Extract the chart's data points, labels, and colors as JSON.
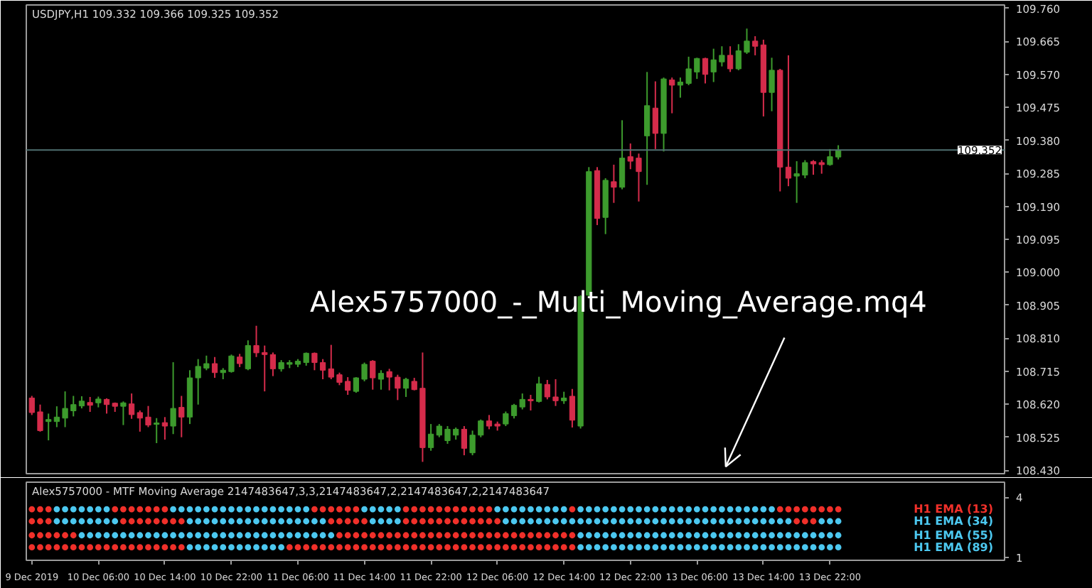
{
  "chart_data": [
    {
      "type": "candlestick",
      "title": "USDJPY,H1 109.332 109.366 109.325 109.352",
      "annotations": [
        "Alex5757000_-_Multi_Moving_Average.mq4"
      ],
      "x": [
        "2019-12-09T22:00",
        "2019-12-09T23:00",
        "2019-12-10T00:00",
        "2019-12-10T01:00",
        "2019-12-10T02:00",
        "2019-12-10T03:00",
        "2019-12-10T04:00",
        "2019-12-10T05:00",
        "2019-12-10T06:00",
        "2019-12-10T07:00",
        "2019-12-10T08:00",
        "2019-12-10T09:00",
        "2019-12-10T10:00",
        "2019-12-10T11:00",
        "2019-12-10T12:00",
        "2019-12-10T13:00",
        "2019-12-10T14:00",
        "2019-12-10T15:00",
        "2019-12-10T16:00",
        "2019-12-10T17:00",
        "2019-12-10T18:00",
        "2019-12-10T19:00",
        "2019-12-10T20:00",
        "2019-12-10T21:00",
        "2019-12-10T22:00",
        "2019-12-10T23:00",
        "2019-12-11T00:00",
        "2019-12-11T01:00",
        "2019-12-11T02:00",
        "2019-12-11T03:00",
        "2019-12-11T04:00",
        "2019-12-11T05:00",
        "2019-12-11T06:00",
        "2019-12-11T07:00",
        "2019-12-11T08:00",
        "2019-12-11T09:00",
        "2019-12-11T10:00",
        "2019-12-11T11:00",
        "2019-12-11T12:00",
        "2019-12-11T13:00",
        "2019-12-11T14:00",
        "2019-12-11T15:00",
        "2019-12-11T16:00",
        "2019-12-11T17:00",
        "2019-12-11T18:00",
        "2019-12-11T19:00",
        "2019-12-11T20:00",
        "2019-12-11T21:00",
        "2019-12-11T22:00",
        "2019-12-11T23:00",
        "2019-12-12T00:00",
        "2019-12-12T01:00",
        "2019-12-12T02:00",
        "2019-12-12T03:00",
        "2019-12-12T04:00",
        "2019-12-12T05:00",
        "2019-12-12T06:00",
        "2019-12-12T07:00",
        "2019-12-12T08:00",
        "2019-12-12T09:00",
        "2019-12-12T10:00",
        "2019-12-12T11:00",
        "2019-12-12T12:00",
        "2019-12-12T13:00",
        "2019-12-12T14:00",
        "2019-12-12T15:00",
        "2019-12-12T16:00",
        "2019-12-12T17:00",
        "2019-12-12T18:00",
        "2019-12-12T19:00",
        "2019-12-12T20:00",
        "2019-12-12T21:00",
        "2019-12-12T22:00",
        "2019-12-12T23:00",
        "2019-12-13T00:00",
        "2019-12-13T01:00",
        "2019-12-13T02:00",
        "2019-12-13T03:00",
        "2019-12-13T04:00",
        "2019-12-13T05:00",
        "2019-12-13T06:00",
        "2019-12-13T07:00",
        "2019-12-13T08:00",
        "2019-12-13T09:00",
        "2019-12-13T10:00",
        "2019-12-13T11:00",
        "2019-12-13T12:00",
        "2019-12-13T13:00",
        "2019-12-13T14:00",
        "2019-12-13T15:00",
        "2019-12-13T16:00",
        "2019-12-13T17:00",
        "2019-12-13T18:00",
        "2019-12-13T19:00",
        "2019-12-13T20:00",
        "2019-12-13T21:00",
        "2019-12-13T22:00",
        "2019-12-13T23:00"
      ],
      "ohlc": [
        [
          108.638,
          108.644,
          108.589,
          108.596
        ],
        [
          108.598,
          108.619,
          108.541,
          108.544
        ],
        [
          108.57,
          108.593,
          108.516,
          108.576
        ],
        [
          108.57,
          108.614,
          108.554,
          108.583
        ],
        [
          108.58,
          108.657,
          108.554,
          108.608
        ],
        [
          108.601,
          108.644,
          108.585,
          108.619
        ],
        [
          108.615,
          108.643,
          108.608,
          108.629
        ],
        [
          108.625,
          108.641,
          108.598,
          108.617
        ],
        [
          108.624,
          108.642,
          108.611,
          108.635
        ],
        [
          108.634,
          108.637,
          108.593,
          108.619
        ],
        [
          108.623,
          108.625,
          108.598,
          108.614
        ],
        [
          108.614,
          108.628,
          108.56,
          108.624
        ],
        [
          108.621,
          108.651,
          108.578,
          108.59
        ],
        [
          108.596,
          108.602,
          108.541,
          108.58
        ],
        [
          108.583,
          108.615,
          108.554,
          108.56
        ],
        [
          108.562,
          108.58,
          108.508,
          108.566
        ],
        [
          108.567,
          108.583,
          108.518,
          108.557
        ],
        [
          108.557,
          108.741,
          108.534,
          108.608
        ],
        [
          108.611,
          108.644,
          108.525,
          108.583
        ],
        [
          108.583,
          108.718,
          108.563,
          108.696
        ],
        [
          108.696,
          108.75,
          108.619,
          108.729
        ],
        [
          108.724,
          108.76,
          108.718,
          108.737
        ],
        [
          108.737,
          108.756,
          108.696,
          108.711
        ],
        [
          108.711,
          108.724,
          108.692,
          108.718
        ],
        [
          108.714,
          108.763,
          108.711,
          108.759
        ],
        [
          108.756,
          108.765,
          108.727,
          108.737
        ],
        [
          108.722,
          108.804,
          108.718,
          108.789
        ],
        [
          108.789,
          108.846,
          108.756,
          108.768
        ],
        [
          108.769,
          108.789,
          108.657,
          108.763
        ],
        [
          108.763,
          108.769,
          108.701,
          108.722
        ],
        [
          108.722,
          108.747,
          108.714,
          108.74
        ],
        [
          108.735,
          108.747,
          108.724,
          108.74
        ],
        [
          108.735,
          108.75,
          108.727,
          108.744
        ],
        [
          108.74,
          108.769,
          108.731,
          108.767
        ],
        [
          108.767,
          108.769,
          108.718,
          108.74
        ],
        [
          108.74,
          108.75,
          108.692,
          108.718
        ],
        [
          108.722,
          108.791,
          108.692,
          108.698
        ],
        [
          108.705,
          108.711,
          108.675,
          108.683
        ],
        [
          108.686,
          108.698,
          108.647,
          108.66
        ],
        [
          108.657,
          108.698,
          108.653,
          108.696
        ],
        [
          108.692,
          108.74,
          108.686,
          108.735
        ],
        [
          108.744,
          108.747,
          108.662,
          108.696
        ],
        [
          108.692,
          108.718,
          108.662,
          108.709
        ],
        [
          108.714,
          108.722,
          108.66,
          108.698
        ],
        [
          108.698,
          108.705,
          108.632,
          108.666
        ],
        [
          108.666,
          108.696,
          108.641,
          108.692
        ],
        [
          108.686,
          108.696,
          108.66,
          108.662
        ],
        [
          108.666,
          108.769,
          108.454,
          108.495
        ],
        [
          108.495,
          108.563,
          108.486,
          108.534
        ],
        [
          108.531,
          108.563,
          108.525,
          108.557
        ],
        [
          108.515,
          108.557,
          108.506,
          108.548
        ],
        [
          108.531,
          108.553,
          108.518,
          108.548
        ],
        [
          108.548,
          108.557,
          108.473,
          108.493
        ],
        [
          108.48,
          108.544,
          108.473,
          108.531
        ],
        [
          108.531,
          108.576,
          108.525,
          108.572
        ],
        [
          108.572,
          108.589,
          108.548,
          108.557
        ],
        [
          108.563,
          108.57,
          108.544,
          108.557
        ],
        [
          108.563,
          108.599,
          108.557,
          108.593
        ],
        [
          108.587,
          108.621,
          108.579,
          108.617
        ],
        [
          108.612,
          108.651,
          108.605,
          108.634
        ],
        [
          108.634,
          108.647,
          108.602,
          108.63
        ],
        [
          108.628,
          108.699,
          108.625,
          108.679
        ],
        [
          108.677,
          108.69,
          108.634,
          108.641
        ],
        [
          108.641,
          108.692,
          108.615,
          108.63
        ],
        [
          108.63,
          108.656,
          108.621,
          108.638
        ],
        [
          108.643,
          108.664,
          108.553,
          108.574
        ],
        [
          108.557,
          108.934,
          108.55,
          108.93
        ],
        [
          108.934,
          109.303,
          108.93,
          109.29
        ],
        [
          109.293,
          109.303,
          109.136,
          109.155
        ],
        [
          109.158,
          109.271,
          109.11,
          109.265
        ],
        [
          109.261,
          109.31,
          109.2,
          109.245
        ],
        [
          109.245,
          109.438,
          109.239,
          109.329
        ],
        [
          109.333,
          109.371,
          109.297,
          109.32
        ],
        [
          109.329,
          109.342,
          109.204,
          109.29
        ],
        [
          109.393,
          109.577,
          109.252,
          109.48
        ],
        [
          109.473,
          109.55,
          109.355,
          109.4
        ],
        [
          109.4,
          109.561,
          109.348,
          109.557
        ],
        [
          109.554,
          109.561,
          109.458,
          109.539
        ],
        [
          109.539,
          109.561,
          109.503,
          109.548
        ],
        [
          109.544,
          109.621,
          109.539,
          109.586
        ],
        [
          109.577,
          109.618,
          109.557,
          109.616
        ],
        [
          109.616,
          109.618,
          109.544,
          109.57
        ],
        [
          109.577,
          109.644,
          109.548,
          109.612
        ],
        [
          109.606,
          109.651,
          109.593,
          109.625
        ],
        [
          109.625,
          109.651,
          109.577,
          109.586
        ],
        [
          109.586,
          109.657,
          109.582,
          109.638
        ],
        [
          109.634,
          109.702,
          109.629,
          109.666
        ],
        [
          109.666,
          109.68,
          109.625,
          109.651
        ],
        [
          109.655,
          109.67,
          109.449,
          109.518
        ],
        [
          109.518,
          109.618,
          109.464,
          109.582
        ],
        [
          109.582,
          109.586,
          109.233,
          109.303
        ],
        [
          109.303,
          109.625,
          109.248,
          109.271
        ],
        [
          109.277,
          109.32,
          109.2,
          109.284
        ],
        [
          109.28,
          109.323,
          109.271,
          109.316
        ],
        [
          109.319,
          109.323,
          109.281,
          109.312
        ],
        [
          109.316,
          109.323,
          109.284,
          109.31
        ],
        [
          109.31,
          109.355,
          109.307,
          109.333
        ],
        [
          109.332,
          109.366,
          109.325,
          109.352
        ]
      ],
      "colors": [
        "#d52c4b",
        "#d52c4b",
        "#3d9b2d",
        "#3d9b2d",
        "#3d9b2d",
        "#3d9b2d",
        "#3d9b2d",
        "#d52c4b",
        "#3d9b2d",
        "#d52c4b",
        "#d52c4b",
        "#3d9b2d",
        "#d52c4b",
        "#d52c4b",
        "#d52c4b",
        "#3d9b2d",
        "#d52c4b",
        "#3d9b2d",
        "#d52c4b",
        "#3d9b2d",
        "#3d9b2d",
        "#3d9b2d",
        "#d52c4b",
        "#3d9b2d",
        "#3d9b2d",
        "#d52c4b",
        "#3d9b2d",
        "#d52c4b",
        "#d52c4b",
        "#d52c4b",
        "#3d9b2d",
        "#3d9b2d",
        "#3d9b2d",
        "#3d9b2d",
        "#d52c4b",
        "#d52c4b",
        "#d52c4b",
        "#d52c4b",
        "#d52c4b",
        "#3d9b2d",
        "#3d9b2d",
        "#d52c4b",
        "#3d9b2d",
        "#d52c4b",
        "#d52c4b",
        "#3d9b2d",
        "#d52c4b",
        "#d52c4b",
        "#3d9b2d",
        "#3d9b2d",
        "#3d9b2d",
        "#3d9b2d",
        "#d52c4b",
        "#3d9b2d",
        "#3d9b2d",
        "#d52c4b",
        "#d52c4b",
        "#3d9b2d",
        "#3d9b2d",
        "#3d9b2d",
        "#d52c4b",
        "#3d9b2d",
        "#d52c4b",
        "#d52c4b",
        "#3d9b2d",
        "#d52c4b",
        "#3d9b2d",
        "#3d9b2d",
        "#d52c4b",
        "#3d9b2d",
        "#d52c4b",
        "#3d9b2d",
        "#d52c4b",
        "#d52c4b",
        "#3d9b2d",
        "#d52c4b",
        "#3d9b2d",
        "#d52c4b",
        "#3d9b2d",
        "#3d9b2d",
        "#3d9b2d",
        "#d52c4b",
        "#3d9b2d",
        "#3d9b2d",
        "#d52c4b",
        "#3d9b2d",
        "#3d9b2d",
        "#d52c4b",
        "#d52c4b",
        "#3d9b2d",
        "#d52c4b",
        "#d52c4b",
        "#3d9b2d",
        "#3d9b2d",
        "#d52c4b",
        "#d52c4b",
        "#3d9b2d",
        "#3d9b2d"
      ],
      "xlim": [
        "2019-12-09T21:20",
        "2019-12-14T19:00"
      ],
      "ylim": [
        108.42,
        109.77
      ],
      "yticks": [
        {
          "value": 109.76,
          "label": "109.760"
        },
        109.665,
        {
          "value": 109.57,
          "label": "109.570"
        },
        109.475,
        {
          "value": 109.38,
          "label": "109.380"
        },
        109.285,
        {
          "value": 109.19,
          "label": "109.190"
        },
        109.095,
        {
          "value": 109.0,
          "label": "109.000"
        },
        108.905,
        {
          "value": 108.81,
          "label": "108.810"
        },
        108.715,
        {
          "value": 108.62,
          "label": "108.620"
        },
        108.525,
        {
          "value": 108.43,
          "label": "108.430"
        }
      ],
      "tick_labels": "y",
      "ref_lines": [
        {
          "axis": "y",
          "value": 109.352,
          "label": "109.352",
          "color": "#4f6f70"
        }
      ]
    },
    {
      "type": "scatter",
      "title": "Alex5757000 - MTF Moving Average 2147483647,3,3,2147483647,2,2147483647,2,2147483647",
      "x": [
        "2019-12-09T22:00",
        "2019-12-09T23:00",
        "2019-12-10T00:00",
        "2019-12-10T01:00",
        "2019-12-10T02:00",
        "2019-12-10T03:00",
        "2019-12-10T04:00",
        "2019-12-10T05:00",
        "2019-12-10T06:00",
        "2019-12-10T07:00",
        "2019-12-10T08:00",
        "2019-12-10T09:00",
        "2019-12-10T10:00",
        "2019-12-10T11:00",
        "2019-12-10T12:00",
        "2019-12-10T13:00",
        "2019-12-10T14:00",
        "2019-12-10T15:00",
        "2019-12-10T16:00",
        "2019-12-10T17:00",
        "2019-12-10T18:00",
        "2019-12-10T19:00",
        "2019-12-10T20:00",
        "2019-12-10T21:00",
        "2019-12-10T22:00",
        "2019-12-10T23:00",
        "2019-12-11T00:00",
        "2019-12-11T01:00",
        "2019-12-11T02:00",
        "2019-12-11T03:00",
        "2019-12-11T04:00",
        "2019-12-11T05:00",
        "2019-12-11T06:00",
        "2019-12-11T07:00",
        "2019-12-11T08:00",
        "2019-12-11T09:00",
        "2019-12-11T10:00",
        "2019-12-11T11:00",
        "2019-12-11T12:00",
        "2019-12-11T13:00",
        "2019-12-11T14:00",
        "2019-12-11T15:00",
        "2019-12-11T16:00",
        "2019-12-11T17:00",
        "2019-12-11T18:00",
        "2019-12-11T19:00",
        "2019-12-11T20:00",
        "2019-12-11T21:00",
        "2019-12-11T22:00",
        "2019-12-11T23:00",
        "2019-12-12T00:00",
        "2019-12-12T01:00",
        "2019-12-12T02:00",
        "2019-12-12T03:00",
        "2019-12-12T04:00",
        "2019-12-12T05:00",
        "2019-12-12T06:00",
        "2019-12-12T07:00",
        "2019-12-12T08:00",
        "2019-12-12T09:00",
        "2019-12-12T10:00",
        "2019-12-12T11:00",
        "2019-12-12T12:00",
        "2019-12-12T13:00",
        "2019-12-12T14:00",
        "2019-12-12T15:00",
        "2019-12-12T16:00",
        "2019-12-12T17:00",
        "2019-12-12T18:00",
        "2019-12-12T19:00",
        "2019-12-12T20:00",
        "2019-12-12T21:00",
        "2019-12-12T22:00",
        "2019-12-12T23:00",
        "2019-12-13T00:00",
        "2019-12-13T01:00",
        "2019-12-13T02:00",
        "2019-12-13T03:00",
        "2019-12-13T04:00",
        "2019-12-13T05:00",
        "2019-12-13T06:00",
        "2019-12-13T07:00",
        "2019-12-13T08:00",
        "2019-12-13T09:00",
        "2019-12-13T10:00",
        "2019-12-13T11:00",
        "2019-12-13T12:00",
        "2019-12-13T13:00",
        "2019-12-13T14:00",
        "2019-12-13T15:00",
        "2019-12-13T16:00",
        "2019-12-13T17:00",
        "2019-12-13T18:00",
        "2019-12-13T19:00",
        "2019-12-13T20:00",
        "2019-12-13T21:00",
        "2019-12-13T22:00",
        "2019-12-13T23:00"
      ],
      "series": [
        {
          "name": "H1 EMA (13)",
          "values": [
            3.4,
            3.4,
            3.4,
            3.4,
            3.4,
            3.4,
            3.4,
            3.4,
            3.4,
            3.4,
            3.4,
            3.4,
            3.4,
            3.4,
            3.4,
            3.4,
            3.4,
            3.4,
            3.4,
            3.4,
            3.4,
            3.4,
            3.4,
            3.4,
            3.4,
            3.4,
            3.4,
            3.4,
            3.4,
            3.4,
            3.4,
            3.4,
            3.4,
            3.4,
            3.4,
            3.4,
            3.4,
            3.4,
            3.4,
            3.4,
            3.4,
            3.4,
            3.4,
            3.4,
            3.4,
            3.4,
            3.4,
            3.4,
            3.4,
            3.4,
            3.4,
            3.4,
            3.4,
            3.4,
            3.4,
            3.4,
            3.4,
            3.4,
            3.4,
            3.4,
            3.4,
            3.4,
            3.4,
            3.4,
            3.4,
            3.4,
            3.4,
            3.4,
            3.4,
            3.4,
            3.4,
            3.4,
            3.4,
            3.4,
            3.4,
            3.4,
            3.4,
            3.4,
            3.4,
            3.4,
            3.4,
            3.4,
            3.4,
            3.4,
            3.4,
            3.4,
            3.4,
            3.4,
            3.4,
            3.4,
            3.4,
            3.4,
            3.4,
            3.4,
            3.4,
            3.4,
            3.4,
            3.4
          ],
          "colors": [
            "#f0302a",
            "#f0302a",
            "#f0302a",
            "#4cc8f0",
            "#4cc8f0",
            "#4cc8f0",
            "#4cc8f0",
            "#4cc8f0",
            "#4cc8f0",
            "#4cc8f0",
            "#f0302a",
            "#f0302a",
            "#f0302a",
            "#f0302a",
            "#f0302a",
            "#f0302a",
            "#f0302a",
            "#4cc8f0",
            "#4cc8f0",
            "#4cc8f0",
            "#4cc8f0",
            "#4cc8f0",
            "#4cc8f0",
            "#4cc8f0",
            "#4cc8f0",
            "#4cc8f0",
            "#4cc8f0",
            "#4cc8f0",
            "#4cc8f0",
            "#4cc8f0",
            "#4cc8f0",
            "#4cc8f0",
            "#4cc8f0",
            "#4cc8f0",
            "#f0302a",
            "#f0302a",
            "#f0302a",
            "#f0302a",
            "#f0302a",
            "#f0302a",
            "#4cc8f0",
            "#4cc8f0",
            "#4cc8f0",
            "#4cc8f0",
            "#4cc8f0",
            "#f0302a",
            "#f0302a",
            "#f0302a",
            "#f0302a",
            "#f0302a",
            "#f0302a",
            "#f0302a",
            "#f0302a",
            "#f0302a",
            "#f0302a",
            "#f0302a",
            "#4cc8f0",
            "#4cc8f0",
            "#4cc8f0",
            "#4cc8f0",
            "#4cc8f0",
            "#4cc8f0",
            "#4cc8f0",
            "#4cc8f0",
            "#4cc8f0",
            "#f0302a",
            "#4cc8f0",
            "#4cc8f0",
            "#4cc8f0",
            "#4cc8f0",
            "#4cc8f0",
            "#4cc8f0",
            "#4cc8f0",
            "#4cc8f0",
            "#4cc8f0",
            "#4cc8f0",
            "#4cc8f0",
            "#4cc8f0",
            "#4cc8f0",
            "#4cc8f0",
            "#4cc8f0",
            "#4cc8f0",
            "#4cc8f0",
            "#4cc8f0",
            "#4cc8f0",
            "#4cc8f0",
            "#4cc8f0",
            "#4cc8f0",
            "#4cc8f0",
            "#4cc8f0",
            "#f0302a",
            "#f0302a",
            "#f0302a",
            "#f0302a",
            "#f0302a",
            "#f0302a",
            "#f0302a",
            "#f0302a"
          ]
        },
        {
          "name": "H1 EMA (34)",
          "values": [
            2.8,
            2.8,
            2.8,
            2.8,
            2.8,
            2.8,
            2.8,
            2.8,
            2.8,
            2.8,
            2.8,
            2.8,
            2.8,
            2.8,
            2.8,
            2.8,
            2.8,
            2.8,
            2.8,
            2.8,
            2.8,
            2.8,
            2.8,
            2.8,
            2.8,
            2.8,
            2.8,
            2.8,
            2.8,
            2.8,
            2.8,
            2.8,
            2.8,
            2.8,
            2.8,
            2.8,
            2.8,
            2.8,
            2.8,
            2.8,
            2.8,
            2.8,
            2.8,
            2.8,
            2.8,
            2.8,
            2.8,
            2.8,
            2.8,
            2.8,
            2.8,
            2.8,
            2.8,
            2.8,
            2.8,
            2.8,
            2.8,
            2.8,
            2.8,
            2.8,
            2.8,
            2.8,
            2.8,
            2.8,
            2.8,
            2.8,
            2.8,
            2.8,
            2.8,
            2.8,
            2.8,
            2.8,
            2.8,
            2.8,
            2.8,
            2.8,
            2.8,
            2.8,
            2.8,
            2.8,
            2.8,
            2.8,
            2.8,
            2.8,
            2.8,
            2.8,
            2.8,
            2.8,
            2.8,
            2.8,
            2.8,
            2.8,
            2.8,
            2.8,
            2.8,
            2.8,
            2.8,
            2.8
          ],
          "colors": [
            "#f0302a",
            "#f0302a",
            "#f0302a",
            "#4cc8f0",
            "#4cc8f0",
            "#4cc8f0",
            "#4cc8f0",
            "#4cc8f0",
            "#4cc8f0",
            "#4cc8f0",
            "#4cc8f0",
            "#f0302a",
            "#f0302a",
            "#f0302a",
            "#f0302a",
            "#f0302a",
            "#f0302a",
            "#f0302a",
            "#f0302a",
            "#4cc8f0",
            "#4cc8f0",
            "#4cc8f0",
            "#4cc8f0",
            "#4cc8f0",
            "#4cc8f0",
            "#4cc8f0",
            "#4cc8f0",
            "#4cc8f0",
            "#4cc8f0",
            "#4cc8f0",
            "#4cc8f0",
            "#4cc8f0",
            "#4cc8f0",
            "#4cc8f0",
            "#4cc8f0",
            "#4cc8f0",
            "#f0302a",
            "#f0302a",
            "#f0302a",
            "#f0302a",
            "#f0302a",
            "#4cc8f0",
            "#4cc8f0",
            "#4cc8f0",
            "#4cc8f0",
            "#f0302a",
            "#f0302a",
            "#f0302a",
            "#f0302a",
            "#f0302a",
            "#f0302a",
            "#f0302a",
            "#f0302a",
            "#f0302a",
            "#f0302a",
            "#f0302a",
            "#f0302a",
            "#4cc8f0",
            "#4cc8f0",
            "#4cc8f0",
            "#4cc8f0",
            "#4cc8f0",
            "#4cc8f0",
            "#4cc8f0",
            "#4cc8f0",
            "#4cc8f0",
            "#4cc8f0",
            "#4cc8f0",
            "#4cc8f0",
            "#4cc8f0",
            "#4cc8f0",
            "#4cc8f0",
            "#4cc8f0",
            "#4cc8f0",
            "#4cc8f0",
            "#4cc8f0",
            "#4cc8f0",
            "#4cc8f0",
            "#4cc8f0",
            "#4cc8f0",
            "#4cc8f0",
            "#4cc8f0",
            "#4cc8f0",
            "#4cc8f0",
            "#4cc8f0",
            "#4cc8f0",
            "#4cc8f0",
            "#4cc8f0",
            "#4cc8f0",
            "#4cc8f0",
            "#4cc8f0",
            "#4cc8f0",
            "#f0302a",
            "#f0302a",
            "#f0302a",
            "#4cc8f0",
            "#4cc8f0",
            "#4cc8f0"
          ]
        },
        {
          "name": "H1 EMA (55)",
          "values": [
            2.1,
            2.1,
            2.1,
            2.1,
            2.1,
            2.1,
            2.1,
            2.1,
            2.1,
            2.1,
            2.1,
            2.1,
            2.1,
            2.1,
            2.1,
            2.1,
            2.1,
            2.1,
            2.1,
            2.1,
            2.1,
            2.1,
            2.1,
            2.1,
            2.1,
            2.1,
            2.1,
            2.1,
            2.1,
            2.1,
            2.1,
            2.1,
            2.1,
            2.1,
            2.1,
            2.1,
            2.1,
            2.1,
            2.1,
            2.1,
            2.1,
            2.1,
            2.1,
            2.1,
            2.1,
            2.1,
            2.1,
            2.1,
            2.1,
            2.1,
            2.1,
            2.1,
            2.1,
            2.1,
            2.1,
            2.1,
            2.1,
            2.1,
            2.1,
            2.1,
            2.1,
            2.1,
            2.1,
            2.1,
            2.1,
            2.1,
            2.1,
            2.1,
            2.1,
            2.1,
            2.1,
            2.1,
            2.1,
            2.1,
            2.1,
            2.1,
            2.1,
            2.1,
            2.1,
            2.1,
            2.1,
            2.1,
            2.1,
            2.1,
            2.1,
            2.1,
            2.1,
            2.1,
            2.1,
            2.1,
            2.1,
            2.1,
            2.1,
            2.1,
            2.1,
            2.1,
            2.1,
            2.1
          ],
          "colors": [
            "#f0302a",
            "#f0302a",
            "#f0302a",
            "#f0302a",
            "#f0302a",
            "#f0302a",
            "#4cc8f0",
            "#4cc8f0",
            "#4cc8f0",
            "#4cc8f0",
            "#4cc8f0",
            "#4cc8f0",
            "#4cc8f0",
            "#4cc8f0",
            "#4cc8f0",
            "#4cc8f0",
            "#4cc8f0",
            "#4cc8f0",
            "#4cc8f0",
            "#4cc8f0",
            "#4cc8f0",
            "#4cc8f0",
            "#4cc8f0",
            "#4cc8f0",
            "#4cc8f0",
            "#4cc8f0",
            "#4cc8f0",
            "#4cc8f0",
            "#4cc8f0",
            "#4cc8f0",
            "#4cc8f0",
            "#4cc8f0",
            "#4cc8f0",
            "#4cc8f0",
            "#4cc8f0",
            "#4cc8f0",
            "#4cc8f0",
            "#f0302a",
            "#f0302a",
            "#f0302a",
            "#f0302a",
            "#f0302a",
            "#f0302a",
            "#f0302a",
            "#f0302a",
            "#f0302a",
            "#f0302a",
            "#f0302a",
            "#f0302a",
            "#f0302a",
            "#f0302a",
            "#f0302a",
            "#f0302a",
            "#f0302a",
            "#f0302a",
            "#f0302a",
            "#f0302a",
            "#f0302a",
            "#f0302a",
            "#f0302a",
            "#f0302a",
            "#f0302a",
            "#f0302a",
            "#f0302a",
            "#f0302a",
            "#f0302a",
            "#4cc8f0",
            "#4cc8f0",
            "#4cc8f0",
            "#4cc8f0",
            "#4cc8f0",
            "#4cc8f0",
            "#4cc8f0",
            "#4cc8f0",
            "#4cc8f0",
            "#4cc8f0",
            "#4cc8f0",
            "#4cc8f0",
            "#4cc8f0",
            "#4cc8f0",
            "#4cc8f0",
            "#4cc8f0",
            "#4cc8f0",
            "#4cc8f0",
            "#4cc8f0",
            "#4cc8f0",
            "#4cc8f0",
            "#4cc8f0",
            "#4cc8f0",
            "#4cc8f0",
            "#4cc8f0",
            "#4cc8f0",
            "#4cc8f0",
            "#4cc8f0",
            "#4cc8f0",
            "#4cc8f0",
            "#4cc8f0",
            "#4cc8f0"
          ]
        },
        {
          "name": "H1 EMA (89)",
          "values": [
            1.5,
            1.5,
            1.5,
            1.5,
            1.5,
            1.5,
            1.5,
            1.5,
            1.5,
            1.5,
            1.5,
            1.5,
            1.5,
            1.5,
            1.5,
            1.5,
            1.5,
            1.5,
            1.5,
            1.5,
            1.5,
            1.5,
            1.5,
            1.5,
            1.5,
            1.5,
            1.5,
            1.5,
            1.5,
            1.5,
            1.5,
            1.5,
            1.5,
            1.5,
            1.5,
            1.5,
            1.5,
            1.5,
            1.5,
            1.5,
            1.5,
            1.5,
            1.5,
            1.5,
            1.5,
            1.5,
            1.5,
            1.5,
            1.5,
            1.5,
            1.5,
            1.5,
            1.5,
            1.5,
            1.5,
            1.5,
            1.5,
            1.5,
            1.5,
            1.5,
            1.5,
            1.5,
            1.5,
            1.5,
            1.5,
            1.5,
            1.5,
            1.5,
            1.5,
            1.5,
            1.5,
            1.5,
            1.5,
            1.5,
            1.5,
            1.5,
            1.5,
            1.5,
            1.5,
            1.5,
            1.5,
            1.5,
            1.5,
            1.5,
            1.5,
            1.5,
            1.5,
            1.5,
            1.5,
            1.5,
            1.5,
            1.5,
            1.5,
            1.5,
            1.5,
            1.5,
            1.5,
            1.5
          ],
          "colors": [
            "#f0302a",
            "#f0302a",
            "#f0302a",
            "#f0302a",
            "#f0302a",
            "#f0302a",
            "#f0302a",
            "#f0302a",
            "#f0302a",
            "#f0302a",
            "#f0302a",
            "#f0302a",
            "#f0302a",
            "#f0302a",
            "#f0302a",
            "#f0302a",
            "#f0302a",
            "#f0302a",
            "#f0302a",
            "#4cc8f0",
            "#4cc8f0",
            "#4cc8f0",
            "#4cc8f0",
            "#4cc8f0",
            "#4cc8f0",
            "#4cc8f0",
            "#4cc8f0",
            "#4cc8f0",
            "#4cc8f0",
            "#4cc8f0",
            "#4cc8f0",
            "#f0302a",
            "#f0302a",
            "#f0302a",
            "#f0302a",
            "#f0302a",
            "#f0302a",
            "#f0302a",
            "#f0302a",
            "#f0302a",
            "#f0302a",
            "#f0302a",
            "#f0302a",
            "#f0302a",
            "#f0302a",
            "#f0302a",
            "#f0302a",
            "#f0302a",
            "#f0302a",
            "#f0302a",
            "#f0302a",
            "#f0302a",
            "#f0302a",
            "#f0302a",
            "#f0302a",
            "#f0302a",
            "#f0302a",
            "#f0302a",
            "#f0302a",
            "#f0302a",
            "#f0302a",
            "#f0302a",
            "#f0302a",
            "#f0302a",
            "#f0302a",
            "#f0302a",
            "#4cc8f0",
            "#4cc8f0",
            "#4cc8f0",
            "#4cc8f0",
            "#4cc8f0",
            "#4cc8f0",
            "#4cc8f0",
            "#4cc8f0",
            "#4cc8f0",
            "#4cc8f0",
            "#4cc8f0",
            "#4cc8f0",
            "#4cc8f0",
            "#4cc8f0",
            "#4cc8f0",
            "#4cc8f0",
            "#4cc8f0",
            "#4cc8f0",
            "#4cc8f0",
            "#4cc8f0",
            "#4cc8f0",
            "#4cc8f0",
            "#4cc8f0",
            "#4cc8f0",
            "#4cc8f0",
            "#4cc8f0",
            "#4cc8f0",
            "#4cc8f0",
            "#4cc8f0",
            "#4cc8f0",
            "#4cc8f0",
            "#4cc8f0"
          ]
        }
      ],
      "marker": "circle",
      "legend": "right",
      "xlim": [
        "2019-12-09T21:20",
        "2019-12-14T19:00"
      ],
      "xticks": [
        {
          "value": "2019-12-09T22:00",
          "label": "9 Dec 2019"
        },
        {
          "value": "2019-12-10T06:00",
          "label": "10 Dec 06:00"
        },
        {
          "value": "2019-12-10T14:00",
          "label": "10 Dec 14:00"
        },
        {
          "value": "2019-12-10T22:00",
          "label": "10 Dec 22:00"
        },
        {
          "value": "2019-12-11T06:00",
          "label": "11 Dec 06:00"
        },
        {
          "value": "2019-12-11T14:00",
          "label": "11 Dec 14:00"
        },
        {
          "value": "2019-12-11T22:00",
          "label": "11 Dec 22:00"
        },
        {
          "value": "2019-12-12T06:00",
          "label": "12 Dec 06:00"
        },
        {
          "value": "2019-12-12T14:00",
          "label": "12 Dec 14:00"
        },
        {
          "value": "2019-12-12T22:00",
          "label": "12 Dec 22:00"
        },
        {
          "value": "2019-12-13T06:00",
          "label": "13 Dec 06:00"
        },
        {
          "value": "2019-12-13T14:00",
          "label": "13 Dec 14:00"
        },
        {
          "value": "2019-12-13T22:00",
          "label": "13 Dec 22:00"
        }
      ],
      "ylim": [
        0.85,
        4.75
      ],
      "yticks": [
        4,
        1
      ]
    }
  ]
}
